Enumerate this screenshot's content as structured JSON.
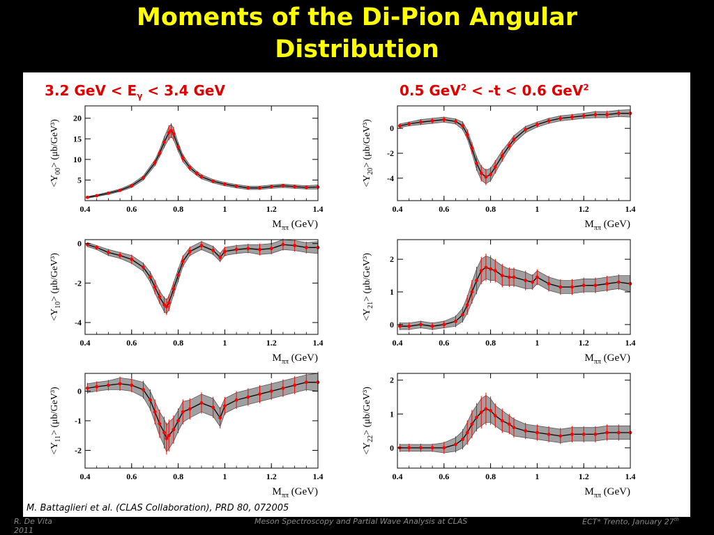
{
  "slide": {
    "title_line1": "Moments of the Di-Pion Angular",
    "title_line2": "Distribution",
    "energy_cut": {
      "pre": "3.2 GeV < E",
      "sub": "γ",
      "post": " < 3.4 GeV"
    },
    "t_cut": {
      "a": "0.5 GeV",
      "sup1": "2",
      "b": " < -t < 0.6 GeV",
      "sup2": "2"
    },
    "citation": "M. Battaglieri et al. (CLAS Collaboration), PRD 80, 072005",
    "footer_left": "R. De Vita",
    "footer_left_year": "2011",
    "footer_center": "Meson Spectroscopy and Partial Wave Analysis at CLAS",
    "footer_right": "ECT* Trento, January 27",
    "footer_right_sup": "th"
  },
  "colors": {
    "title": "#ffff00",
    "cuts": "#e00000",
    "points": "#ff0000",
    "band": "#a0a0a0",
    "curve": "#000000"
  },
  "chart_data": [
    {
      "id": "y00",
      "type": "scatter",
      "ylabel_sub": "00",
      "ylabel_unit": "(μb/GeV³)",
      "xlabel": "M",
      "xlabel_sub": "ππ",
      "xlabel_unit": "(GeV)",
      "xlim": [
        0.4,
        1.4
      ],
      "ylim": [
        0,
        23
      ],
      "xticks": [
        0.4,
        0.6,
        0.8,
        1,
        1.2,
        1.4
      ],
      "yticks": [
        5,
        10,
        15,
        20
      ],
      "x": [
        0.41,
        0.45,
        0.5,
        0.55,
        0.6,
        0.65,
        0.7,
        0.72,
        0.74,
        0.76,
        0.77,
        0.78,
        0.8,
        0.82,
        0.85,
        0.88,
        0.9,
        0.95,
        1.0,
        1.05,
        1.1,
        1.15,
        1.2,
        1.25,
        1.3,
        1.35,
        1.4
      ],
      "y": [
        0.8,
        1.2,
        1.8,
        2.5,
        3.6,
        5.5,
        9.2,
        11.5,
        14.2,
        16.5,
        17.0,
        16.2,
        13.0,
        10.3,
        8.0,
        6.6,
        5.8,
        4.7,
        4.0,
        3.5,
        3.1,
        3.1,
        3.4,
        3.6,
        3.4,
        3.2,
        3.3
      ],
      "err": [
        0.2,
        0.2,
        0.3,
        0.3,
        0.4,
        0.5,
        0.7,
        0.8,
        1.2,
        1.5,
        1.5,
        1.4,
        1.0,
        0.8,
        0.6,
        0.5,
        0.5,
        0.4,
        0.4,
        0.4,
        0.4,
        0.4,
        0.4,
        0.4,
        0.4,
        0.4,
        0.5
      ]
    },
    {
      "id": "y20",
      "type": "scatter",
      "ylabel_sub": "20",
      "ylabel_unit": "(μb/GeV³)",
      "xlabel": "M",
      "xlabel_sub": "ππ",
      "xlabel_unit": "(GeV)",
      "xlim": [
        0.4,
        1.4
      ],
      "ylim": [
        -5.8,
        1.8
      ],
      "xticks": [
        0.4,
        0.6,
        0.8,
        1,
        1.2,
        1.4
      ],
      "yticks": [
        -4,
        -2,
        0
      ],
      "x": [
        0.41,
        0.45,
        0.5,
        0.55,
        0.6,
        0.65,
        0.68,
        0.7,
        0.72,
        0.74,
        0.76,
        0.78,
        0.8,
        0.82,
        0.85,
        0.88,
        0.9,
        0.95,
        1.0,
        1.05,
        1.1,
        1.15,
        1.2,
        1.25,
        1.3,
        1.35,
        1.4
      ],
      "y": [
        0.2,
        0.35,
        0.5,
        0.6,
        0.7,
        0.55,
        0.2,
        -0.5,
        -1.6,
        -2.8,
        -3.6,
        -3.9,
        -3.7,
        -3.1,
        -2.2,
        -1.4,
        -0.9,
        -0.1,
        0.3,
        0.6,
        0.8,
        0.9,
        1.0,
        1.1,
        1.1,
        1.2,
        1.2
      ],
      "err": [
        0.15,
        0.15,
        0.2,
        0.2,
        0.2,
        0.2,
        0.3,
        0.35,
        0.4,
        0.5,
        0.55,
        0.55,
        0.5,
        0.45,
        0.4,
        0.3,
        0.3,
        0.25,
        0.2,
        0.2,
        0.2,
        0.2,
        0.2,
        0.25,
        0.25,
        0.25,
        0.3
      ]
    },
    {
      "id": "y10",
      "type": "scatter",
      "ylabel_sub": "10",
      "ylabel_unit": "(μb/GeV³)",
      "xlabel": "M",
      "xlabel_sub": "ππ",
      "xlabel_unit": "(GeV)",
      "xlim": [
        0.4,
        1.4
      ],
      "ylim": [
        -4.6,
        0.2
      ],
      "xticks": [
        0.4,
        0.6,
        0.8,
        1,
        1.2,
        1.4
      ],
      "yticks": [
        -4,
        -2,
        0
      ],
      "x": [
        0.41,
        0.45,
        0.5,
        0.55,
        0.6,
        0.65,
        0.68,
        0.7,
        0.72,
        0.74,
        0.75,
        0.76,
        0.78,
        0.8,
        0.82,
        0.85,
        0.9,
        0.95,
        0.98,
        1.0,
        1.05,
        1.1,
        1.15,
        1.2,
        1.25,
        1.3,
        1.35,
        1.4
      ],
      "y": [
        -0.05,
        -0.2,
        -0.45,
        -0.6,
        -0.8,
        -1.2,
        -1.7,
        -2.2,
        -2.7,
        -3.1,
        -3.2,
        -3.0,
        -2.3,
        -1.6,
        -0.9,
        -0.4,
        -0.1,
        -0.35,
        -0.7,
        -0.4,
        -0.3,
        -0.25,
        -0.3,
        -0.25,
        -0.05,
        -0.1,
        -0.2,
        -0.2
      ],
      "err": [
        0.1,
        0.1,
        0.15,
        0.15,
        0.2,
        0.2,
        0.25,
        0.3,
        0.3,
        0.35,
        0.35,
        0.35,
        0.3,
        0.3,
        0.25,
        0.2,
        0.2,
        0.2,
        0.2,
        0.2,
        0.2,
        0.2,
        0.25,
        0.25,
        0.25,
        0.25,
        0.25,
        0.3
      ]
    },
    {
      "id": "y21",
      "type": "scatter",
      "ylabel_sub": "21",
      "ylabel_unit": "(μb/GeV³)",
      "xlabel": "M",
      "xlabel_sub": "ππ",
      "xlabel_unit": "(GeV)",
      "xlim": [
        0.4,
        1.4
      ],
      "ylim": [
        -0.3,
        2.6
      ],
      "xticks": [
        0.4,
        0.6,
        0.8,
        1,
        1.2,
        1.4
      ],
      "yticks": [
        0,
        1,
        2
      ],
      "x": [
        0.41,
        0.45,
        0.5,
        0.55,
        0.6,
        0.65,
        0.68,
        0.7,
        0.72,
        0.74,
        0.76,
        0.78,
        0.8,
        0.82,
        0.85,
        0.88,
        0.9,
        0.95,
        0.98,
        1.0,
        1.05,
        1.1,
        1.15,
        1.2,
        1.25,
        1.3,
        1.35,
        1.4
      ],
      "y": [
        -0.05,
        -0.05,
        0.0,
        -0.05,
        0.0,
        0.1,
        0.3,
        0.6,
        1.0,
        1.35,
        1.65,
        1.75,
        1.7,
        1.65,
        1.5,
        1.45,
        1.45,
        1.35,
        1.3,
        1.45,
        1.25,
        1.15,
        1.15,
        1.2,
        1.2,
        1.25,
        1.3,
        1.25
      ],
      "err": [
        0.1,
        0.1,
        0.1,
        0.1,
        0.1,
        0.15,
        0.2,
        0.25,
        0.3,
        0.35,
        0.35,
        0.35,
        0.35,
        0.3,
        0.3,
        0.25,
        0.25,
        0.25,
        0.2,
        0.2,
        0.2,
        0.2,
        0.2,
        0.2,
        0.2,
        0.2,
        0.2,
        0.25
      ]
    },
    {
      "id": "y11",
      "type": "scatter",
      "ylabel_sub": "11",
      "ylabel_unit": "(μb/GeV³)",
      "xlabel": "M",
      "xlabel_sub": "ππ",
      "xlabel_unit": "(GeV)",
      "xlim": [
        0.4,
        1.4
      ],
      "ylim": [
        -2.6,
        0.6
      ],
      "xticks": [
        0.4,
        0.6,
        0.8,
        1,
        1.2,
        1.4
      ],
      "yticks": [
        -2,
        -1,
        0
      ],
      "x": [
        0.41,
        0.45,
        0.5,
        0.55,
        0.6,
        0.65,
        0.68,
        0.7,
        0.72,
        0.74,
        0.75,
        0.76,
        0.78,
        0.8,
        0.82,
        0.85,
        0.9,
        0.95,
        0.98,
        1.0,
        1.05,
        1.1,
        1.15,
        1.2,
        1.25,
        1.3,
        1.35,
        1.4
      ],
      "y": [
        0.1,
        0.15,
        0.2,
        0.25,
        0.2,
        0.05,
        -0.3,
        -0.7,
        -1.1,
        -1.4,
        -1.6,
        -1.5,
        -1.3,
        -1.0,
        -0.7,
        -0.6,
        -0.4,
        -0.55,
        -0.9,
        -0.5,
        -0.3,
        -0.2,
        -0.1,
        0.0,
        0.1,
        0.2,
        0.3,
        0.3
      ],
      "err": [
        0.15,
        0.15,
        0.15,
        0.2,
        0.2,
        0.25,
        0.3,
        0.35,
        0.4,
        0.45,
        0.45,
        0.45,
        0.4,
        0.35,
        0.35,
        0.3,
        0.3,
        0.3,
        0.3,
        0.25,
        0.25,
        0.25,
        0.25,
        0.25,
        0.25,
        0.25,
        0.25,
        0.3
      ]
    },
    {
      "id": "y22",
      "type": "scatter",
      "ylabel_sub": "22",
      "ylabel_unit": "(μb/GeV³)",
      "xlabel": "M",
      "xlabel_sub": "ππ",
      "xlabel_unit": "(GeV)",
      "xlim": [
        0.4,
        1.4
      ],
      "ylim": [
        -0.6,
        2.2
      ],
      "xticks": [
        0.4,
        0.6,
        0.8,
        1,
        1.2,
        1.4
      ],
      "yticks": [
        0,
        1,
        2
      ],
      "x": [
        0.41,
        0.45,
        0.5,
        0.55,
        0.6,
        0.65,
        0.68,
        0.7,
        0.72,
        0.74,
        0.76,
        0.78,
        0.8,
        0.82,
        0.85,
        0.88,
        0.9,
        0.95,
        1.0,
        1.05,
        1.1,
        1.15,
        1.2,
        1.25,
        1.3,
        1.35,
        1.4
      ],
      "y": [
        0.0,
        0.0,
        0.0,
        0.0,
        0.0,
        0.1,
        0.25,
        0.45,
        0.7,
        0.9,
        1.05,
        1.15,
        1.1,
        0.95,
        0.8,
        0.7,
        0.6,
        0.5,
        0.45,
        0.4,
        0.35,
        0.4,
        0.4,
        0.4,
        0.45,
        0.45,
        0.45
      ],
      "err": [
        0.1,
        0.1,
        0.1,
        0.1,
        0.15,
        0.2,
        0.25,
        0.3,
        0.35,
        0.35,
        0.4,
        0.4,
        0.35,
        0.3,
        0.3,
        0.25,
        0.25,
        0.2,
        0.2,
        0.2,
        0.2,
        0.2,
        0.2,
        0.2,
        0.2,
        0.2,
        0.2
      ]
    }
  ]
}
